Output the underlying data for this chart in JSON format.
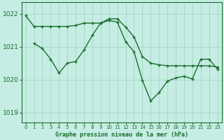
{
  "title": "Graphe pression niveau de la mer (hPa)",
  "bg_color": "#c5ede3",
  "grid_color": "#a8d8c8",
  "line_color": "#1a6e2e",
  "xlim": [
    -0.5,
    23.5
  ],
  "ylim": [
    1018.7,
    1022.35
  ],
  "yticks": [
    1019,
    1020,
    1021,
    1022
  ],
  "xticks": [
    0,
    1,
    2,
    3,
    4,
    5,
    6,
    7,
    8,
    9,
    10,
    11,
    12,
    13,
    14,
    15,
    16,
    17,
    18,
    19,
    20,
    21,
    22,
    23
  ],
  "line1_x": [
    0,
    1,
    2,
    3,
    4,
    5,
    6,
    7,
    8,
    9,
    10,
    11,
    12,
    13,
    14,
    15,
    16,
    17,
    18,
    19,
    20,
    21,
    22,
    23
  ],
  "line1_y": [
    1021.95,
    1021.62,
    1021.62,
    1021.62,
    1021.62,
    1021.62,
    1021.65,
    1021.72,
    1021.72,
    1021.72,
    1021.85,
    1021.85,
    1021.6,
    1021.3,
    1020.7,
    1020.5,
    1020.45,
    1020.42,
    1020.42,
    1020.42,
    1020.42,
    1020.42,
    1020.42,
    1020.38
  ],
  "line2_x": [
    1,
    2,
    3,
    4,
    5,
    6,
    7,
    8,
    9,
    10,
    11,
    12,
    13,
    14,
    15,
    16,
    17,
    18,
    19,
    20,
    21,
    22,
    23
  ],
  "line2_y": [
    1021.1,
    1020.95,
    1020.62,
    1020.2,
    1020.5,
    1020.55,
    1020.9,
    1021.35,
    1021.72,
    1021.8,
    1021.75,
    1021.15,
    1020.85,
    1019.98,
    1019.35,
    1019.6,
    1019.95,
    1020.05,
    1020.1,
    1020.02,
    1020.62,
    1020.62,
    1020.32
  ]
}
